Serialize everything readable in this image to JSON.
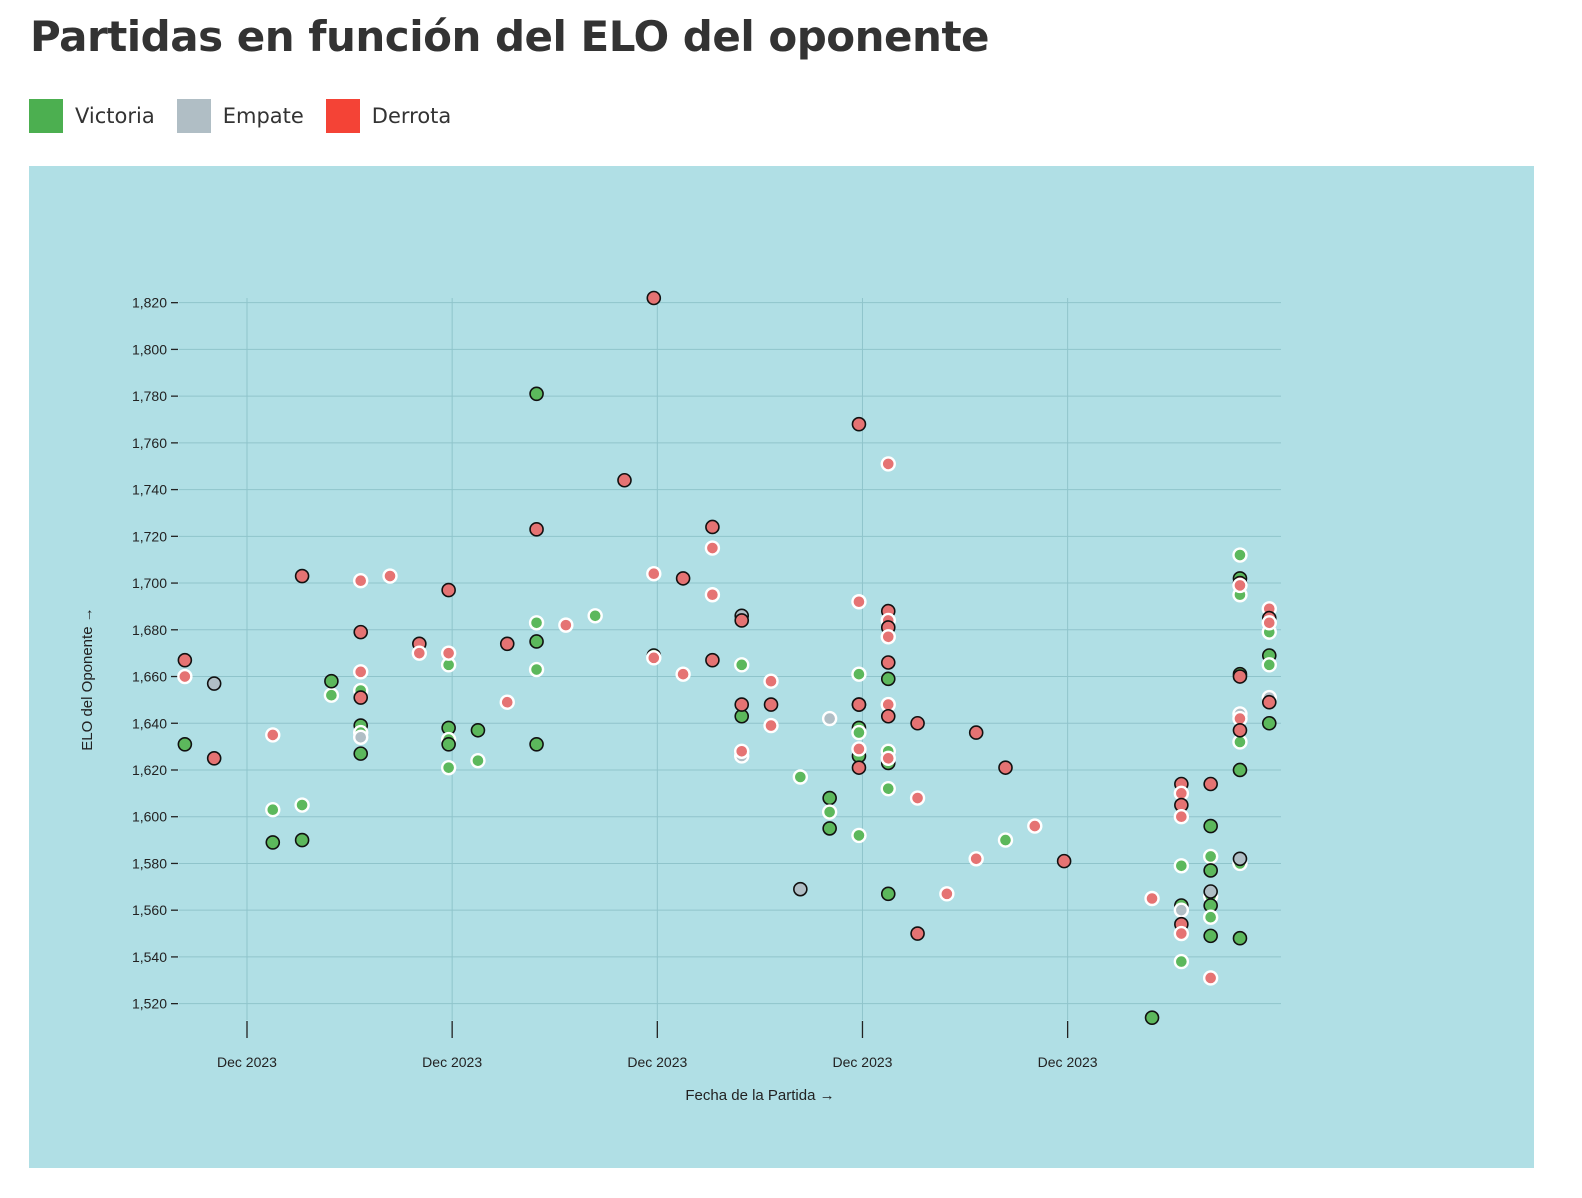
{
  "title": "Partidas en función del ELO del oponente",
  "legend": [
    {
      "label": "Victoria",
      "color": "#4caf50"
    },
    {
      "label": "Empate",
      "color": "#b0bec5"
    },
    {
      "label": "Derrota",
      "color": "#f44336"
    }
  ],
  "colors": {
    "panel_background": "#b0dfe5",
    "victoria_point": "#5cb85c",
    "empate_point": "#b0bec5",
    "derrota_point": "#e57373"
  },
  "chart_data": {
    "type": "scatter",
    "title": "Partidas en función del ELO del oponente",
    "xlabel": "Fecha de la Partida →",
    "ylabel": "ELO del Oponente →",
    "x_tick_labels": [
      "Dec 2023",
      "Dec 2023",
      "Dec 2023",
      "Dec 2023",
      "Dec 2023"
    ],
    "y_ticks": [
      1520,
      1540,
      1560,
      1580,
      1600,
      1620,
      1640,
      1660,
      1680,
      1700,
      1720,
      1740,
      1760,
      1780,
      1800,
      1820
    ],
    "y_tick_labels": [
      "1,520",
      "1,540",
      "1,560",
      "1,580",
      "1,600",
      "1,620",
      "1,640",
      "1,660",
      "1,680",
      "1,700",
      "1,720",
      "1,740",
      "1,760",
      "1,780",
      "1,800",
      "1,820"
    ],
    "ylim": [
      1513,
      1822
    ],
    "grid": true,
    "legend_position": "top-left",
    "x_unit": "game index (dates all within Dec 2023; x tick labels fall at 2.12, 9.12, 16.12, 23.12, 30.12)",
    "xlim": [
      -0.2,
      37.4
    ],
    "series": [
      {
        "name": "Victoria",
        "points": [
          [
            0,
            1631
          ],
          [
            3,
            1603
          ],
          [
            3,
            1589
          ],
          [
            4,
            1605
          ],
          [
            4,
            1590
          ],
          [
            5,
            1652
          ],
          [
            5,
            1658
          ],
          [
            6,
            1654
          ],
          [
            6,
            1639
          ],
          [
            6,
            1636
          ],
          [
            6,
            1627
          ],
          [
            9,
            1665
          ],
          [
            9,
            1638
          ],
          [
            9,
            1633
          ],
          [
            9,
            1631
          ],
          [
            9,
            1621
          ],
          [
            10,
            1637
          ],
          [
            10,
            1624
          ],
          [
            12,
            1781
          ],
          [
            12,
            1683
          ],
          [
            12,
            1675
          ],
          [
            12,
            1663
          ],
          [
            12,
            1631
          ],
          [
            14,
            1686
          ],
          [
            16,
            1669
          ],
          [
            19,
            1665
          ],
          [
            19,
            1643
          ],
          [
            21,
            1617
          ],
          [
            22,
            1608
          ],
          [
            22,
            1602
          ],
          [
            22,
            1595
          ],
          [
            23,
            1661
          ],
          [
            23,
            1638
          ],
          [
            23,
            1636
          ],
          [
            23,
            1626
          ],
          [
            23,
            1592
          ],
          [
            24,
            1659
          ],
          [
            24,
            1628
          ],
          [
            24,
            1623
          ],
          [
            24,
            1612
          ],
          [
            24,
            1567
          ],
          [
            28,
            1590
          ],
          [
            33,
            1514
          ],
          [
            34,
            1579
          ],
          [
            34,
            1562
          ],
          [
            34,
            1538
          ],
          [
            35,
            1596
          ],
          [
            35,
            1583
          ],
          [
            35,
            1577
          ],
          [
            35,
            1566
          ],
          [
            35,
            1562
          ],
          [
            35,
            1557
          ],
          [
            35,
            1549
          ],
          [
            36,
            1712
          ],
          [
            36,
            1702
          ],
          [
            36,
            1695
          ],
          [
            36,
            1661
          ],
          [
            36,
            1632
          ],
          [
            36,
            1620
          ],
          [
            36,
            1580
          ],
          [
            36,
            1548
          ],
          [
            37,
            1679
          ],
          [
            37,
            1669
          ],
          [
            37,
            1665
          ],
          [
            37,
            1640
          ]
        ]
      },
      {
        "name": "Empate",
        "points": [
          [
            1,
            1657
          ],
          [
            6,
            1634
          ],
          [
            19,
            1686
          ],
          [
            19,
            1626
          ],
          [
            21,
            1569
          ],
          [
            22,
            1642
          ],
          [
            23,
            1648
          ],
          [
            34,
            1560
          ],
          [
            35,
            1568
          ],
          [
            36,
            1644
          ],
          [
            36,
            1582
          ],
          [
            37,
            1651
          ]
        ]
      },
      {
        "name": "Derrota",
        "points": [
          [
            0,
            1667
          ],
          [
            0,
            1660
          ],
          [
            1,
            1625
          ],
          [
            3,
            1635
          ],
          [
            4,
            1703
          ],
          [
            6,
            1701
          ],
          [
            6,
            1679
          ],
          [
            6,
            1662
          ],
          [
            6,
            1651
          ],
          [
            7,
            1703
          ],
          [
            8,
            1674
          ],
          [
            8,
            1670
          ],
          [
            9,
            1697
          ],
          [
            9,
            1670
          ],
          [
            11,
            1674
          ],
          [
            11,
            1649
          ],
          [
            12,
            1723
          ],
          [
            13,
            1682
          ],
          [
            15,
            1744
          ],
          [
            16,
            1704
          ],
          [
            16,
            1822
          ],
          [
            16,
            1668
          ],
          [
            17,
            1702
          ],
          [
            17,
            1661
          ],
          [
            18,
            1724
          ],
          [
            18,
            1715
          ],
          [
            19,
            1684
          ],
          [
            19,
            1628
          ],
          [
            19,
            1648
          ],
          [
            18,
            1695
          ],
          [
            18,
            1667
          ],
          [
            20,
            1658
          ],
          [
            20,
            1648
          ],
          [
            20,
            1639
          ],
          [
            23,
            1768
          ],
          [
            23,
            1692
          ],
          [
            23,
            1648
          ],
          [
            23,
            1629
          ],
          [
            23,
            1621
          ],
          [
            24,
            1751
          ],
          [
            24,
            1688
          ],
          [
            24,
            1684
          ],
          [
            24,
            1681
          ],
          [
            24,
            1677
          ],
          [
            24,
            1666
          ],
          [
            24,
            1648
          ],
          [
            24,
            1643
          ],
          [
            24,
            1625
          ],
          [
            25,
            1640
          ],
          [
            25,
            1608
          ],
          [
            25,
            1550
          ],
          [
            26,
            1567
          ],
          [
            27,
            1636
          ],
          [
            27,
            1582
          ],
          [
            28,
            1621
          ],
          [
            29,
            1596
          ],
          [
            30,
            1581
          ],
          [
            33,
            1565
          ],
          [
            34,
            1614
          ],
          [
            34,
            1610
          ],
          [
            34,
            1605
          ],
          [
            34,
            1600
          ],
          [
            34,
            1554
          ],
          [
            34,
            1550
          ],
          [
            35,
            1614
          ],
          [
            35,
            1531
          ],
          [
            36,
            1700
          ],
          [
            36,
            1699
          ],
          [
            36,
            1660
          ],
          [
            36,
            1642
          ],
          [
            36,
            1637
          ],
          [
            37,
            1689
          ],
          [
            37,
            1685
          ],
          [
            37,
            1683
          ],
          [
            37,
            1649
          ]
        ]
      }
    ]
  }
}
